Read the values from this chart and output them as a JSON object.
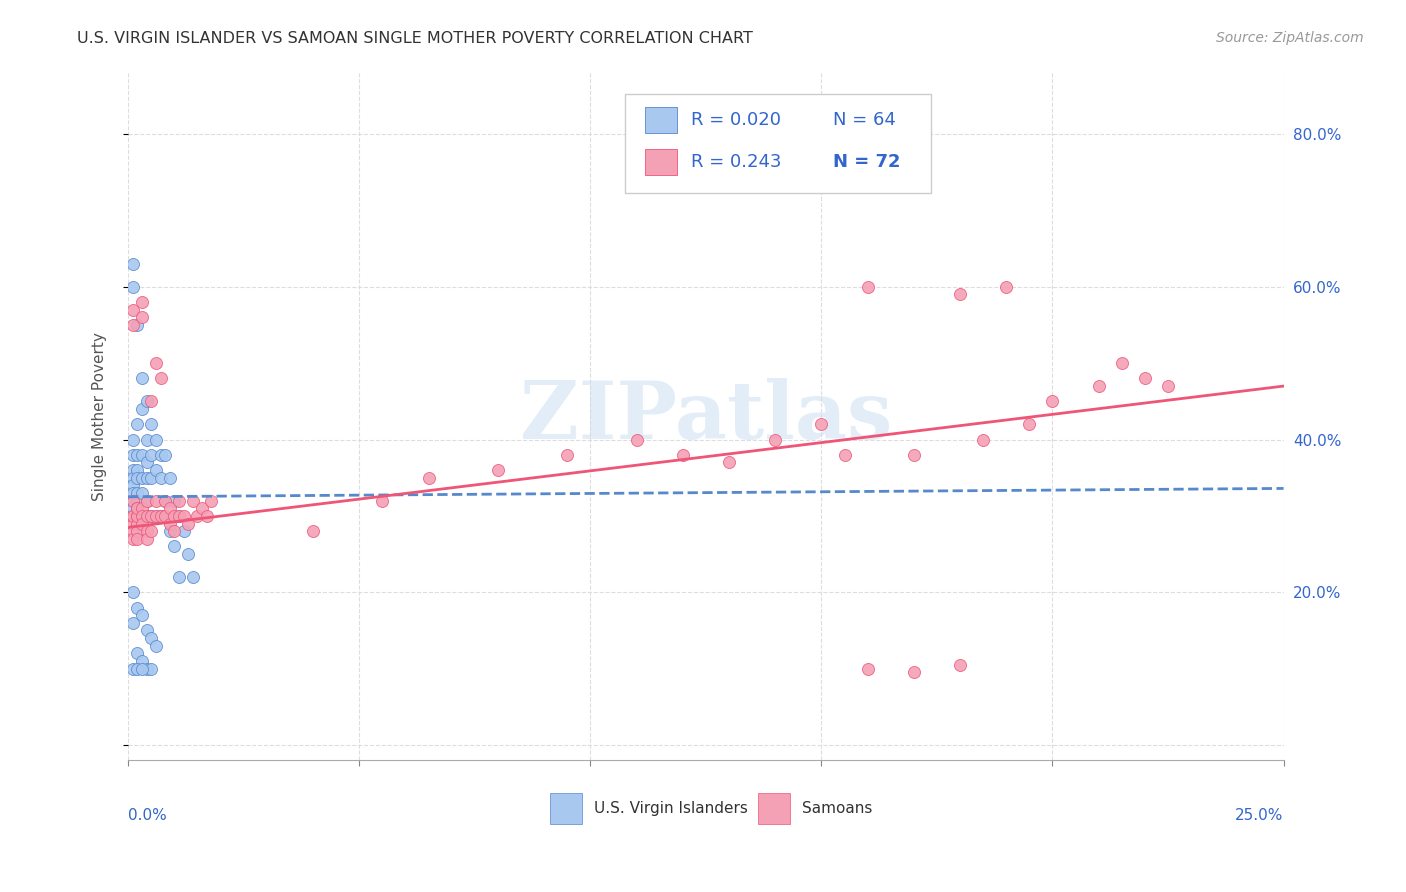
{
  "title": "U.S. VIRGIN ISLANDER VS SAMOAN SINGLE MOTHER POVERTY CORRELATION CHART",
  "source": "Source: ZipAtlas.com",
  "ylabel": "Single Mother Poverty",
  "xlim": [
    0.0,
    0.25
  ],
  "ylim": [
    -0.02,
    0.88
  ],
  "color_blue": "#A8C8F0",
  "color_pink": "#F4A0B5",
  "color_blue_line": "#5588CC",
  "color_pink_line": "#EE5577",
  "color_legend_r": "#3366CC",
  "color_axis_label": "#3366CC",
  "watermark_text": "ZIPatlas",
  "background_color": "#FFFFFF",
  "grid_color": "#DDDDDD",
  "vi_x": [
    0.001,
    0.001,
    0.001,
    0.001,
    0.001,
    0.001,
    0.001,
    0.001,
    0.001,
    0.001,
    0.002,
    0.002,
    0.002,
    0.002,
    0.002,
    0.002,
    0.002,
    0.002,
    0.003,
    0.003,
    0.003,
    0.003,
    0.003,
    0.003,
    0.004,
    0.004,
    0.004,
    0.004,
    0.004,
    0.005,
    0.005,
    0.005,
    0.005,
    0.006,
    0.006,
    0.006,
    0.007,
    0.007,
    0.007,
    0.008,
    0.008,
    0.009,
    0.009,
    0.01,
    0.01,
    0.011,
    0.011,
    0.012,
    0.013,
    0.014,
    0.001,
    0.002,
    0.003,
    0.004,
    0.005,
    0.006,
    0.001,
    0.002,
    0.003,
    0.004,
    0.005,
    0.001,
    0.002,
    0.003
  ],
  "vi_y": [
    0.63,
    0.6,
    0.4,
    0.38,
    0.36,
    0.35,
    0.34,
    0.33,
    0.32,
    0.31,
    0.55,
    0.42,
    0.38,
    0.36,
    0.35,
    0.33,
    0.32,
    0.3,
    0.48,
    0.44,
    0.38,
    0.35,
    0.33,
    0.3,
    0.45,
    0.4,
    0.37,
    0.35,
    0.32,
    0.42,
    0.38,
    0.35,
    0.3,
    0.4,
    0.36,
    0.3,
    0.38,
    0.35,
    0.3,
    0.38,
    0.32,
    0.35,
    0.28,
    0.32,
    0.26,
    0.3,
    0.22,
    0.28,
    0.25,
    0.22,
    0.2,
    0.18,
    0.17,
    0.15,
    0.14,
    0.13,
    0.16,
    0.12,
    0.11,
    0.1,
    0.1,
    0.1,
    0.1,
    0.1
  ],
  "sa_x": [
    0.001,
    0.001,
    0.001,
    0.001,
    0.001,
    0.001,
    0.001,
    0.001,
    0.002,
    0.002,
    0.002,
    0.002,
    0.002,
    0.002,
    0.002,
    0.003,
    0.003,
    0.003,
    0.003,
    0.003,
    0.004,
    0.004,
    0.004,
    0.004,
    0.005,
    0.005,
    0.005,
    0.006,
    0.006,
    0.006,
    0.007,
    0.007,
    0.008,
    0.008,
    0.009,
    0.009,
    0.01,
    0.01,
    0.011,
    0.011,
    0.012,
    0.013,
    0.014,
    0.015,
    0.016,
    0.017,
    0.018,
    0.04,
    0.055,
    0.065,
    0.08,
    0.095,
    0.11,
    0.12,
    0.13,
    0.14,
    0.15,
    0.155,
    0.16,
    0.17,
    0.18,
    0.185,
    0.19,
    0.195,
    0.2,
    0.21,
    0.215,
    0.22,
    0.225,
    0.16,
    0.17,
    0.18
  ],
  "sa_y": [
    0.32,
    0.3,
    0.29,
    0.28,
    0.27,
    0.3,
    0.55,
    0.57,
    0.31,
    0.3,
    0.29,
    0.28,
    0.27,
    0.3,
    0.31,
    0.58,
    0.56,
    0.31,
    0.3,
    0.29,
    0.32,
    0.3,
    0.28,
    0.27,
    0.45,
    0.3,
    0.28,
    0.5,
    0.32,
    0.3,
    0.48,
    0.3,
    0.32,
    0.3,
    0.31,
    0.29,
    0.3,
    0.28,
    0.32,
    0.3,
    0.3,
    0.29,
    0.32,
    0.3,
    0.31,
    0.3,
    0.32,
    0.28,
    0.32,
    0.35,
    0.36,
    0.38,
    0.4,
    0.38,
    0.37,
    0.4,
    0.42,
    0.38,
    0.6,
    0.38,
    0.59,
    0.4,
    0.6,
    0.42,
    0.45,
    0.47,
    0.5,
    0.48,
    0.47,
    0.1,
    0.095,
    0.105
  ],
  "vi_line_x": [
    0.0,
    0.25
  ],
  "vi_line_y": [
    0.325,
    0.336
  ],
  "sa_line_x": [
    0.0,
    0.25
  ],
  "sa_line_y": [
    0.285,
    0.47
  ]
}
